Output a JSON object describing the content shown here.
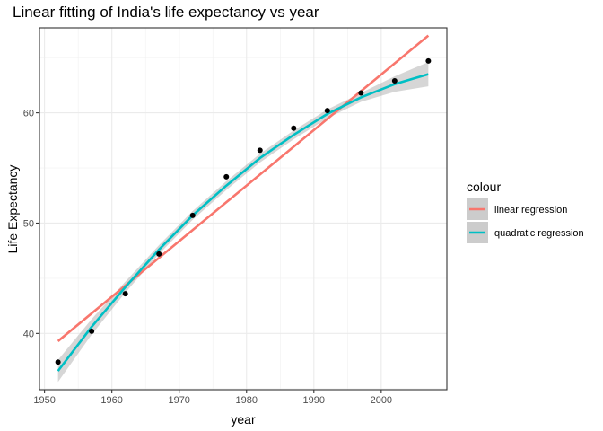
{
  "chart_data": {
    "type": "line",
    "title": "Linear fitting of India's life expectancy vs year",
    "xlabel": "year",
    "ylabel": "Life Expectancy",
    "xlim": [
      1949.25,
      2009.75
    ],
    "ylim": [
      34.9,
      67.7
    ],
    "x_ticks": [
      1950,
      1960,
      1970,
      1980,
      1990,
      2000
    ],
    "y_ticks": [
      40,
      50,
      60
    ],
    "grid": true,
    "legend": {
      "title": "colour",
      "position": "right"
    },
    "points": {
      "x": [
        1952,
        1957,
        1962,
        1967,
        1972,
        1977,
        1982,
        1987,
        1992,
        1997,
        2002,
        2007
      ],
      "y": [
        37.4,
        40.2,
        43.6,
        47.2,
        50.7,
        54.2,
        56.6,
        58.6,
        60.2,
        61.8,
        62.9,
        64.7
      ]
    },
    "series": [
      {
        "name": "linear regression",
        "color": "#f8766d",
        "x": [
          1952,
          2007
        ],
        "y": [
          39.3,
          67.0
        ]
      },
      {
        "name": "quadratic regression",
        "color": "#00bfc4",
        "x": [
          1952,
          1957,
          1962,
          1967,
          1972,
          1977,
          1982,
          1987,
          1992,
          1997,
          2002,
          2007
        ],
        "y": [
          36.6,
          40.6,
          44.2,
          47.6,
          50.7,
          53.4,
          55.9,
          58.0,
          59.9,
          61.4,
          62.6,
          63.5
        ],
        "band_low": [
          35.6,
          39.9,
          43.7,
          47.2,
          50.3,
          53.0,
          55.5,
          57.6,
          59.5,
          61.0,
          61.9,
          62.4
        ],
        "band_high": [
          37.6,
          41.3,
          44.7,
          48.0,
          51.1,
          53.8,
          56.3,
          58.4,
          60.3,
          61.8,
          63.3,
          64.6
        ]
      }
    ]
  }
}
